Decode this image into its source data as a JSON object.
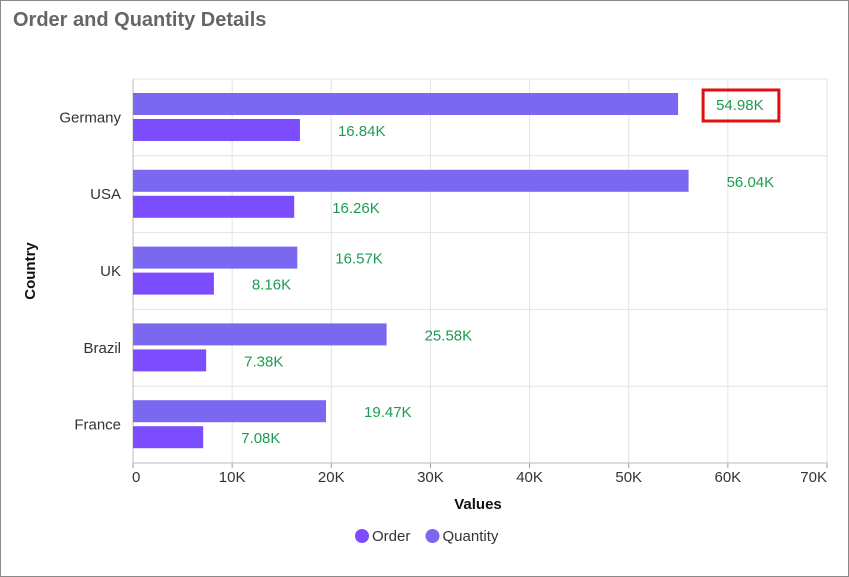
{
  "title": "Order and Quantity Details",
  "chart_data": {
    "type": "bar",
    "orientation": "horizontal",
    "categories": [
      "Germany",
      "USA",
      "UK",
      "Brazil",
      "France"
    ],
    "series": [
      {
        "name": "Quantity",
        "values": [
          54980,
          56040,
          16570,
          25580,
          19470
        ],
        "labels": [
          "54.98K",
          "56.04K",
          "16.57K",
          "25.58K",
          "19.47K"
        ],
        "color": "#7b68f0"
      },
      {
        "name": "Order",
        "values": [
          16840,
          16260,
          8160,
          7380,
          7080
        ],
        "labels": [
          "16.84K",
          "16.26K",
          "8.16K",
          "7.38K",
          "7.08K"
        ],
        "color": "#7c4dff"
      }
    ],
    "xlabel": "Values",
    "ylabel": "Country",
    "xlim": [
      0,
      70000
    ],
    "xticks": [
      0,
      10000,
      20000,
      30000,
      40000,
      50000,
      60000,
      70000
    ],
    "xtick_labels": [
      "0",
      "10K",
      "20K",
      "30K",
      "40K",
      "50K",
      "60K",
      "70K"
    ],
    "grid": true,
    "legend": {
      "position": "bottom",
      "items": [
        "Order",
        "Quantity"
      ]
    },
    "highlight": {
      "series": "Quantity",
      "category": "Germany",
      "color": "#e01010"
    }
  }
}
